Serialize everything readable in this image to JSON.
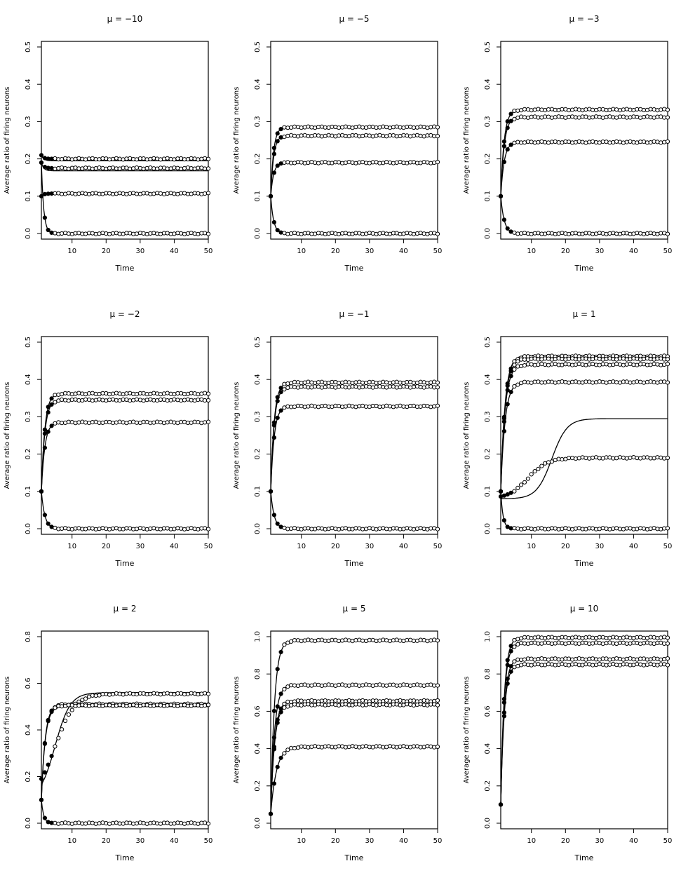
{
  "chart_data": [
    {
      "type": "scatter",
      "title": "μ = −10",
      "xlabel": "Time",
      "ylabel": "Average ratio of firing neurons",
      "xlim": [
        0,
        50
      ],
      "ylim": [
        0,
        0.5
      ],
      "xticks": [
        10,
        20,
        30,
        40,
        50
      ],
      "yticks": [
        0.0,
        0.1,
        0.2,
        0.3,
        0.4,
        0.5
      ],
      "series": [
        {
          "start": 0.21,
          "sim": 0.2,
          "theory": 0.195,
          "rate": 1.5
        },
        {
          "start": 0.19,
          "sim": 0.175,
          "theory": 0.168,
          "rate": 1.5
        },
        {
          "start": 0.1,
          "sim": 0.107,
          "theory": 0.107,
          "rate": 1.5
        },
        {
          "start": 0.19,
          "sim": 0.0,
          "theory": 0.0,
          "rate": 1.5
        }
      ]
    },
    {
      "type": "scatter",
      "title": "μ = −5",
      "xlabel": "Time",
      "ylabel": "Average ratio of firing neurons",
      "xlim": [
        0,
        50
      ],
      "ylim": [
        0,
        0.5
      ],
      "xticks": [
        10,
        20,
        30,
        40,
        50
      ],
      "yticks": [
        0.0,
        0.1,
        0.2,
        0.3,
        0.4,
        0.5
      ],
      "series": [
        {
          "start": 0.1,
          "sim": 0.285,
          "theory": 0.285,
          "rate": 1.2
        },
        {
          "start": 0.1,
          "sim": 0.262,
          "theory": 0.262,
          "rate": 1.2
        },
        {
          "start": 0.1,
          "sim": 0.19,
          "theory": 0.19,
          "rate": 1.2
        },
        {
          "start": 0.1,
          "sim": 0.0,
          "theory": 0.0,
          "rate": 1.2
        }
      ]
    },
    {
      "type": "scatter",
      "title": "μ = −3",
      "xlabel": "Time",
      "ylabel": "Average ratio of firing neurons",
      "xlim": [
        0,
        50
      ],
      "ylim": [
        0,
        0.5
      ],
      "xticks": [
        10,
        20,
        30,
        40,
        50
      ],
      "yticks": [
        0.0,
        0.1,
        0.2,
        0.3,
        0.4,
        0.5
      ],
      "series": [
        {
          "start": 0.1,
          "sim": 0.332,
          "theory": 0.332,
          "rate": 1.0
        },
        {
          "start": 0.1,
          "sim": 0.312,
          "theory": 0.312,
          "rate": 1.0
        },
        {
          "start": 0.1,
          "sim": 0.245,
          "theory": 0.245,
          "rate": 1.0
        },
        {
          "start": 0.1,
          "sim": 0.0,
          "theory": 0.0,
          "rate": 1.0
        }
      ]
    },
    {
      "type": "scatter",
      "title": "μ = −2",
      "xlabel": "Time",
      "ylabel": "Average ratio of firing neurons",
      "xlim": [
        0,
        50
      ],
      "ylim": [
        0,
        0.5
      ],
      "xticks": [
        10,
        20,
        30,
        40,
        50
      ],
      "yticks": [
        0.0,
        0.1,
        0.2,
        0.3,
        0.4,
        0.5
      ],
      "series": [
        {
          "start": 0.1,
          "sim": 0.362,
          "theory": 0.362,
          "rate": 1.0
        },
        {
          "start": 0.1,
          "sim": 0.345,
          "theory": 0.345,
          "rate": 1.0
        },
        {
          "start": 0.1,
          "sim": 0.285,
          "theory": 0.285,
          "rate": 1.0
        },
        {
          "start": 0.1,
          "sim": 0.0,
          "theory": 0.0,
          "rate": 1.0
        }
      ]
    },
    {
      "type": "scatter",
      "title": "μ = −1",
      "xlabel": "Time",
      "ylabel": "Average ratio of firing neurons",
      "xlim": [
        0,
        50
      ],
      "ylim": [
        0,
        0.5
      ],
      "xticks": [
        10,
        20,
        30,
        40,
        50
      ],
      "yticks": [
        0.0,
        0.1,
        0.2,
        0.3,
        0.4,
        0.5
      ],
      "series": [
        {
          "start": 0.1,
          "sim": 0.392,
          "theory": 0.392,
          "rate": 1.0
        },
        {
          "start": 0.1,
          "sim": 0.38,
          "theory": 0.38,
          "rate": 1.0
        },
        {
          "start": 0.1,
          "sim": 0.328,
          "theory": 0.328,
          "rate": 1.0
        },
        {
          "start": 0.1,
          "sim": 0.0,
          "theory": 0.0,
          "rate": 1.0
        }
      ]
    },
    {
      "type": "scatter",
      "title": "μ = 1",
      "xlabel": "Time",
      "ylabel": "Average ratio of firing neurons",
      "xlim": [
        0,
        50
      ],
      "ylim": [
        0,
        0.5
      ],
      "xticks": [
        10,
        20,
        30,
        40,
        50
      ],
      "yticks": [
        0.0,
        0.1,
        0.2,
        0.3,
        0.4,
        0.5
      ],
      "series": [
        {
          "start": 0.1,
          "sim": 0.462,
          "theory": 0.465,
          "rate": 0.8
        },
        {
          "start": 0.1,
          "sim": 0.455,
          "theory": 0.455,
          "rate": 0.8
        },
        {
          "start": 0.1,
          "sim": 0.44,
          "theory": 0.44,
          "rate": 0.8
        },
        {
          "start": 0.1,
          "sim": 0.393,
          "theory": 0.393,
          "rate": 0.8
        },
        {
          "start": 0.08,
          "sim": 0.19,
          "theory": 0.295,
          "mid": 16,
          "mode": "sigmoid",
          "simmid": 9
        },
        {
          "start": 0.1,
          "sim": 0.0,
          "theory": 0.0,
          "rate": 1.5
        }
      ]
    },
    {
      "type": "scatter",
      "title": "μ = 2",
      "xlabel": "Time",
      "ylabel": "Average ratio of firing neurons",
      "xlim": [
        0,
        50
      ],
      "ylim": [
        0,
        0.8
      ],
      "xticks": [
        10,
        20,
        30,
        40,
        50
      ],
      "yticks": [
        0.0,
        0.2,
        0.4,
        0.6,
        0.8
      ],
      "series": [
        {
          "start": 0.1,
          "sim": 0.555,
          "theory": 0.56,
          "mid": 5,
          "mode": "sigmoid",
          "simmid": 5
        },
        {
          "start": 0.1,
          "sim": 0.51,
          "theory": 0.51,
          "rate": 0.9
        },
        {
          "start": 0.1,
          "sim": 0.505,
          "theory": 0.5,
          "rate": 0.9
        },
        {
          "start": 0.1,
          "sim": 0.0,
          "theory": 0.0,
          "rate": 1.5
        }
      ]
    },
    {
      "type": "scatter",
      "title": "μ = 5",
      "xlabel": "Time",
      "ylabel": "Average ratio of firing neurons",
      "xlim": [
        0,
        50
      ],
      "ylim": [
        0,
        1.0
      ],
      "xticks": [
        10,
        20,
        30,
        40,
        50
      ],
      "yticks": [
        0.0,
        0.2,
        0.4,
        0.6,
        0.8,
        1.0
      ],
      "series": [
        {
          "start": 0.05,
          "sim": 0.98,
          "theory": 0.98,
          "rate": 0.9
        },
        {
          "start": 0.05,
          "sim": 0.74,
          "theory": 0.74,
          "rate": 0.9
        },
        {
          "start": 0.05,
          "sim": 0.655,
          "theory": 0.655,
          "rate": 0.9
        },
        {
          "start": 0.05,
          "sim": 0.635,
          "theory": 0.635,
          "rate": 0.9
        },
        {
          "start": 0.05,
          "sim": 0.41,
          "theory": 0.41,
          "rate": 0.6
        }
      ]
    },
    {
      "type": "scatter",
      "title": "μ = 10",
      "xlabel": "Time",
      "ylabel": "Average ratio of firing neurons",
      "xlim": [
        0,
        50
      ],
      "ylim": [
        0,
        1.0
      ],
      "xticks": [
        10,
        20,
        30,
        40,
        50
      ],
      "yticks": [
        0.0,
        0.2,
        0.4,
        0.6,
        0.8,
        1.0
      ],
      "series": [
        {
          "start": 0.1,
          "sim": 0.995,
          "theory": 0.995,
          "rate": 1.0
        },
        {
          "start": 0.1,
          "sim": 0.965,
          "theory": 0.965,
          "rate": 1.0
        },
        {
          "start": 0.1,
          "sim": 0.88,
          "theory": 0.88,
          "rate": 1.0
        },
        {
          "start": 0.1,
          "sim": 0.85,
          "theory": 0.85,
          "rate": 1.0
        }
      ]
    }
  ]
}
